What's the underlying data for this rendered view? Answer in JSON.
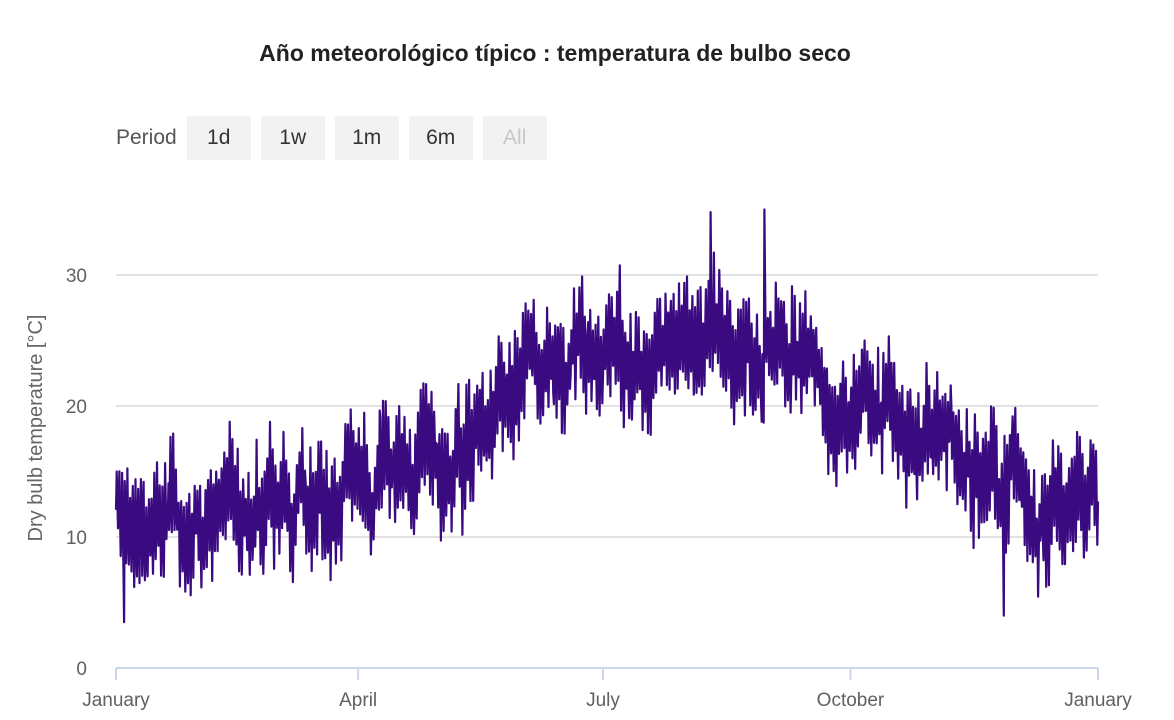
{
  "chart_data": {
    "type": "line",
    "title": "Año meteorológico típico : temperatura de bulbo seco",
    "ylabel": "Dry bulb temperature [°C]",
    "xlabel": "",
    "ylim": [
      0,
      35
    ],
    "yticks": [
      0,
      10,
      20,
      30
    ],
    "xticks": [
      {
        "label": "January",
        "day": 0
      },
      {
        "label": "April",
        "day": 90
      },
      {
        "label": "July",
        "day": 181
      },
      {
        "label": "October",
        "day": 273
      },
      {
        "label": "January",
        "day": 365
      }
    ],
    "grid": true,
    "legend": "none",
    "series": [
      {
        "color": "#3a0a80",
        "x_unit": "day of year",
        "mean_profile": [
          {
            "day": 0,
            "temp": 11.5
          },
          {
            "day": 30,
            "temp": 11.0
          },
          {
            "day": 60,
            "temp": 12.5
          },
          {
            "day": 90,
            "temp": 13.5
          },
          {
            "day": 120,
            "temp": 17.0
          },
          {
            "day": 150,
            "temp": 20.0
          },
          {
            "day": 181,
            "temp": 24.0
          },
          {
            "day": 212,
            "temp": 25.0
          },
          {
            "day": 243,
            "temp": 25.0
          },
          {
            "day": 273,
            "temp": 20.5
          },
          {
            "day": 304,
            "temp": 17.0
          },
          {
            "day": 334,
            "temp": 14.0
          },
          {
            "day": 365,
            "temp": 11.5
          }
        ],
        "daily_range_c": 7,
        "extremes": [
          {
            "day": 3,
            "temp": 3.5
          },
          {
            "day": 221,
            "temp": 34.8
          },
          {
            "day": 241,
            "temp": 35.0
          },
          {
            "day": 330,
            "temp": 4.0
          }
        ]
      }
    ]
  },
  "period_selector": {
    "label": "Period",
    "buttons": [
      "1d",
      "1w",
      "1m",
      "6m",
      "All"
    ],
    "selected": "All"
  }
}
